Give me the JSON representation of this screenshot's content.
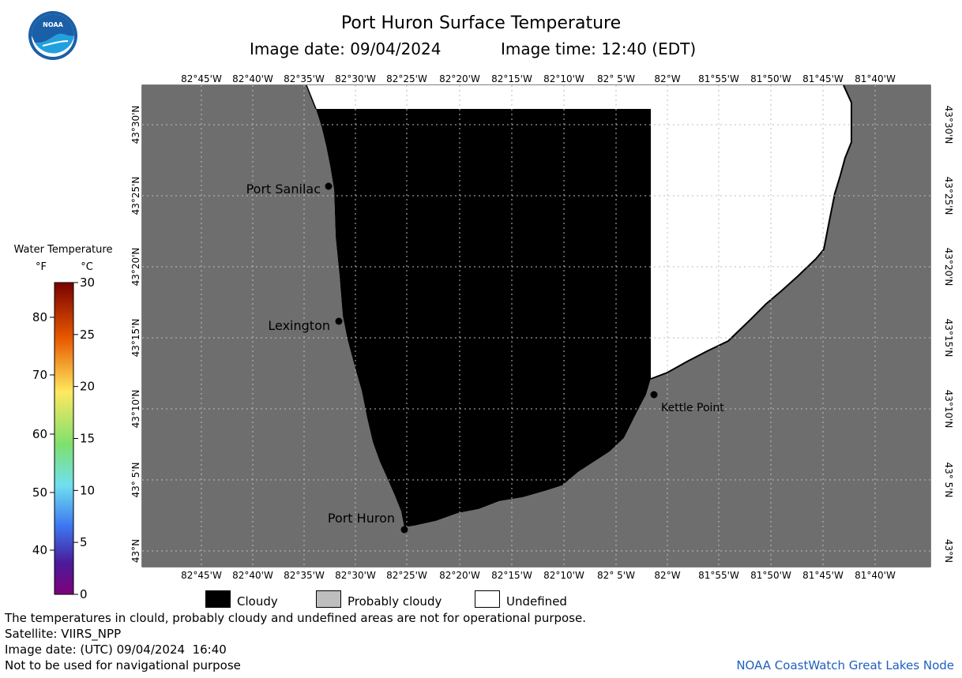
{
  "header": {
    "title": "Port Huron Surface Temperature",
    "image_date": "Image date: 09/04/2024",
    "image_time": "Image time: 12:40 (EDT)"
  },
  "colorbar": {
    "title": "Water Temperature",
    "unit_f": "°F",
    "unit_c": "°C",
    "f_ticks": [
      "80",
      "70",
      "60",
      "50",
      "40"
    ],
    "c_ticks": [
      "30",
      "25",
      "20",
      "15",
      "10",
      "5",
      "0"
    ],
    "colors": [
      "#7a0000",
      "#e85a00",
      "#ffe860",
      "#7ee06e",
      "#70e0f0",
      "#3c78f0",
      "#4a1a9a",
      "#80007a"
    ]
  },
  "map": {
    "lon_labels": [
      "82°45'W",
      "82°40'W",
      "82°35'W",
      "82°30'W",
      "82°25'W",
      "82°20'W",
      "82°15'W",
      "82°10'W",
      "82° 5'W",
      "82°W",
      "81°55'W",
      "81°50'W",
      "81°45'W",
      "81°40'W"
    ],
    "lat_labels": [
      "43°30'N",
      "43°25'N",
      "43°20'N",
      "43°15'N",
      "43°10'N",
      "43° 5'N",
      "43°N"
    ],
    "cities": [
      {
        "name": "Port Sanilac"
      },
      {
        "name": "Lexington"
      },
      {
        "name": "Kettle Point"
      },
      {
        "name": "Port Huron"
      }
    ],
    "colors": {
      "land": "#6e6e6e",
      "cloud": "#000000",
      "undefined": "#ffffff",
      "grid": "#bdbdbd"
    }
  },
  "legend": {
    "cloudy": "Cloudy",
    "probably_cloudy": "Probably cloudy",
    "undefined": "Undefined",
    "colors": {
      "cloudy": "#000000",
      "probably_cloudy": "#bebebe",
      "undefined": "#ffffff"
    }
  },
  "footer": {
    "disclaimer": "The temperatures in clould, probably cloudy and undefined areas are not for operational purpose.",
    "satellite": "Satellite: VIIRS_NPP",
    "utc_date": "Image date: (UTC) 09/04/2024  16:40",
    "nav_warning": "Not to be used for navigational purpose",
    "credit": "NOAA CoastWatch Great Lakes Node"
  },
  "logo": {
    "text": "NOAA"
  }
}
